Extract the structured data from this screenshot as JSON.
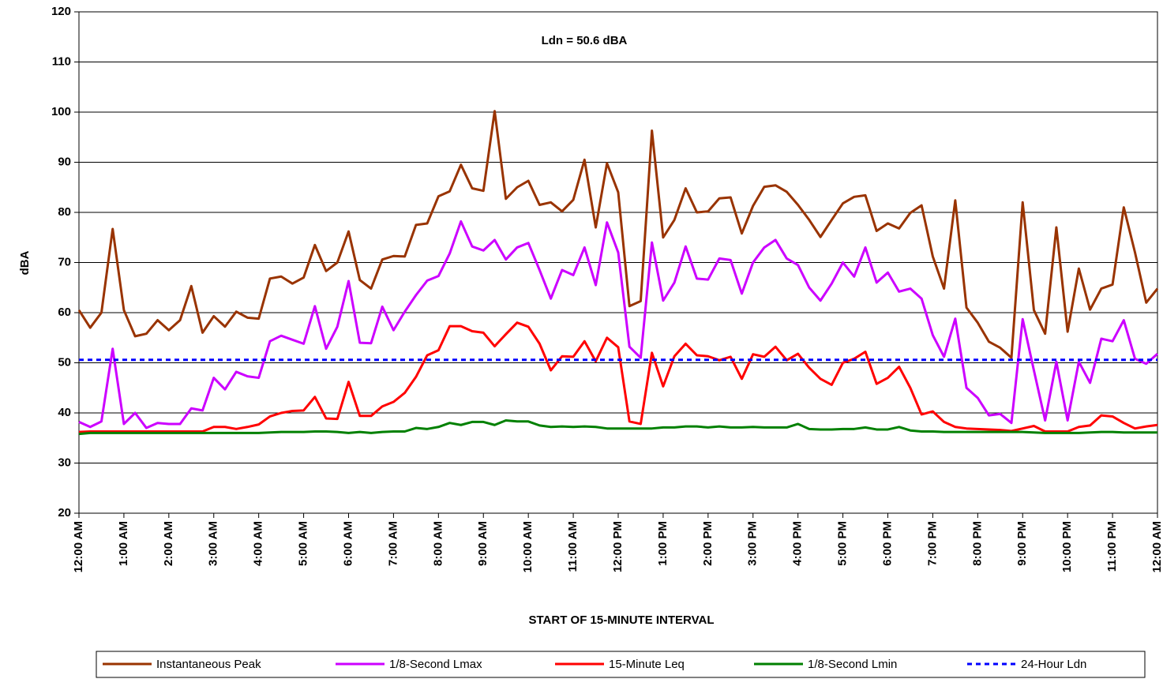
{
  "chart_data": {
    "type": "line",
    "annotation": "Ldn = 50.6 dBA",
    "x_label": "START OF 15-MINUTE INTERVAL",
    "y_label": "dBA",
    "ylim": [
      20,
      120
    ],
    "yticks": [
      20,
      30,
      40,
      50,
      60,
      70,
      80,
      90,
      100,
      110,
      120
    ],
    "grid": true,
    "legend": "bottom",
    "categories": [
      "12:00 AM",
      null,
      null,
      null,
      "1:00 AM",
      null,
      null,
      null,
      "2:00 AM",
      null,
      null,
      null,
      "3:00 AM",
      null,
      null,
      null,
      "4:00 AM",
      null,
      null,
      null,
      "5:00 AM",
      null,
      null,
      null,
      "6:00 AM",
      null,
      null,
      null,
      "7:00 AM",
      null,
      null,
      null,
      "8:00 AM",
      null,
      null,
      null,
      "9:00 AM",
      null,
      null,
      null,
      "10:00 AM",
      null,
      null,
      null,
      "11:00 AM",
      null,
      null,
      null,
      "12:00 PM",
      null,
      null,
      null,
      "1:00 PM",
      null,
      null,
      null,
      "2:00 PM",
      null,
      null,
      null,
      "3:00 PM",
      null,
      null,
      null,
      "4:00 PM",
      null,
      null,
      null,
      "5:00 PM",
      null,
      null,
      null,
      "6:00 PM",
      null,
      null,
      null,
      "7:00 PM",
      null,
      null,
      null,
      "8:00 PM",
      null,
      null,
      null,
      "9:00 PM",
      null,
      null,
      null,
      "10:00 PM",
      null,
      null,
      null,
      "11:00 PM",
      null,
      null,
      null,
      "12:00 AM"
    ],
    "series": [
      {
        "name": "Instantaneous Peak",
        "color": "#993300",
        "values": [
          60.5,
          57,
          60,
          76.7,
          60.5,
          55.3,
          55.8,
          58.5,
          56.5,
          58.5,
          65.3,
          56,
          59.3,
          57.2,
          60.2,
          59,
          58.8,
          66.8,
          67.2,
          65.8,
          67,
          73.5,
          68.3,
          70,
          76.2,
          66.5,
          64.8,
          70.6,
          71.3,
          71.2,
          77.5,
          77.8,
          83.2,
          84.2,
          89.5,
          84.8,
          84.3,
          100.2,
          82.7,
          85,
          86.3,
          81.5,
          82,
          80.2,
          82.5,
          90.5,
          77,
          89.8,
          84,
          61.3,
          62.3,
          96.3,
          75,
          78.5,
          84.8,
          80,
          80.2,
          82.8,
          83,
          75.8,
          81.3,
          85.1,
          85.4,
          84.1,
          81.5,
          78.5,
          75.1,
          78.5,
          81.8,
          83.1,
          83.4,
          76.3,
          77.8,
          76.8,
          79.9,
          81.4,
          71.2,
          64.8,
          82.4,
          61,
          58,
          54.2,
          53,
          51,
          82,
          60.5,
          55.8,
          77,
          56.2,
          68.8,
          60.6,
          64.8,
          65.6,
          81,
          72,
          62,
          64.8
        ]
      },
      {
        "name": "1/8-Second Lmax",
        "color": "#cc00ff",
        "values": [
          38.2,
          37.2,
          38.3,
          52.8,
          37.8,
          40,
          37,
          38,
          37.8,
          37.8,
          40.9,
          40.5,
          47,
          44.7,
          48.2,
          47.3,
          47,
          54.3,
          55.4,
          54.6,
          53.8,
          61.3,
          52.8,
          57.2,
          66.3,
          54,
          53.9,
          61.2,
          56.5,
          60.2,
          63.5,
          66.4,
          67.3,
          71.8,
          78.2,
          73.2,
          72.4,
          74.5,
          70.6,
          73,
          73.9,
          68.5,
          62.8,
          68.5,
          67.5,
          73,
          65.5,
          78,
          72,
          53.2,
          51,
          74,
          62.4,
          66,
          73.2,
          66.8,
          66.6,
          70.8,
          70.5,
          63.8,
          70,
          73,
          74.5,
          70.8,
          69.5,
          65,
          62.4,
          65.8,
          70,
          67.2,
          73,
          66,
          68,
          64.2,
          64.8,
          62.8,
          55.5,
          51.2,
          58.8,
          45,
          43,
          39.5,
          39.8,
          38,
          58.7,
          48.5,
          38.5,
          50.2,
          38.5,
          50.2,
          46,
          54.8,
          54.3,
          58.5,
          50.8,
          49.8,
          51.8
        ]
      },
      {
        "name": "15-Minute Leq",
        "color": "#ff0000",
        "values": [
          36.2,
          36.3,
          36.3,
          36.3,
          36.3,
          36.3,
          36.3,
          36.3,
          36.3,
          36.3,
          36.3,
          36.3,
          37.2,
          37.2,
          36.8,
          37.2,
          37.7,
          39.3,
          40,
          40.4,
          40.5,
          43.2,
          38.9,
          38.8,
          46.2,
          39.4,
          39.4,
          41.3,
          42.2,
          44,
          47.2,
          51.5,
          52.5,
          57.3,
          57.3,
          56.3,
          56,
          53.3,
          55.7,
          58,
          57.2,
          53.8,
          48.5,
          51.3,
          51.2,
          54.3,
          50.3,
          55,
          53.1,
          38.3,
          37.8,
          52,
          45.3,
          51.3,
          53.8,
          51.5,
          51.3,
          50.5,
          51.2,
          46.8,
          51.7,
          51.2,
          53.2,
          50.5,
          51.8,
          49,
          46.8,
          45.6,
          50,
          50.8,
          52.2,
          45.8,
          47,
          49.2,
          45,
          39.7,
          40.3,
          38.2,
          37.2,
          36.9,
          36.8,
          36.7,
          36.6,
          36.4,
          36.9,
          37.4,
          36.3,
          36.3,
          36.3,
          37.2,
          37.5,
          39.5,
          39.3,
          38,
          36.9,
          37.3,
          37.6
        ]
      },
      {
        "name": "1/8-Second Lmin",
        "color": "#008000",
        "values": [
          35.8,
          36,
          36,
          36,
          36,
          36,
          36,
          36,
          36,
          36,
          36,
          36,
          36,
          36,
          36,
          36,
          36,
          36.1,
          36.2,
          36.2,
          36.2,
          36.3,
          36.3,
          36.2,
          36,
          36.2,
          36,
          36.2,
          36.3,
          36.3,
          37,
          36.8,
          37.2,
          38,
          37.6,
          38.2,
          38.2,
          37.6,
          38.5,
          38.3,
          38.3,
          37.5,
          37.2,
          37.3,
          37.2,
          37.3,
          37.2,
          36.9,
          36.9,
          36.9,
          36.9,
          36.9,
          37.1,
          37.1,
          37.3,
          37.3,
          37.1,
          37.3,
          37.1,
          37.1,
          37.2,
          37.1,
          37.1,
          37.1,
          37.8,
          36.8,
          36.7,
          36.7,
          36.8,
          36.8,
          37.1,
          36.7,
          36.7,
          37.2,
          36.5,
          36.3,
          36.3,
          36.2,
          36.2,
          36.2,
          36.2,
          36.2,
          36.2,
          36.2,
          36.2,
          36.1,
          36,
          36,
          36,
          36,
          36.1,
          36.2,
          36.2,
          36.1,
          36.1,
          36.1,
          36.1
        ]
      },
      {
        "name": "24-Hour Ldn",
        "color": "#0000ff",
        "dashed": true,
        "values": [
          50.6,
          50.6,
          50.6,
          50.6,
          50.6,
          50.6,
          50.6,
          50.6,
          50.6,
          50.6,
          50.6,
          50.6,
          50.6,
          50.6,
          50.6,
          50.6,
          50.6,
          50.6,
          50.6,
          50.6,
          50.6,
          50.6,
          50.6,
          50.6,
          50.6,
          50.6,
          50.6,
          50.6,
          50.6,
          50.6,
          50.6,
          50.6,
          50.6,
          50.6,
          50.6,
          50.6,
          50.6,
          50.6,
          50.6,
          50.6,
          50.6,
          50.6,
          50.6,
          50.6,
          50.6,
          50.6,
          50.6,
          50.6,
          50.6,
          50.6,
          50.6,
          50.6,
          50.6,
          50.6,
          50.6,
          50.6,
          50.6,
          50.6,
          50.6,
          50.6,
          50.6,
          50.6,
          50.6,
          50.6,
          50.6,
          50.6,
          50.6,
          50.6,
          50.6,
          50.6,
          50.6,
          50.6,
          50.6,
          50.6,
          50.6,
          50.6,
          50.6,
          50.6,
          50.6,
          50.6,
          50.6,
          50.6,
          50.6,
          50.6,
          50.6,
          50.6,
          50.6,
          50.6,
          50.6,
          50.6,
          50.6,
          50.6,
          50.6,
          50.6,
          50.6,
          50.6,
          50.6
        ]
      }
    ]
  }
}
